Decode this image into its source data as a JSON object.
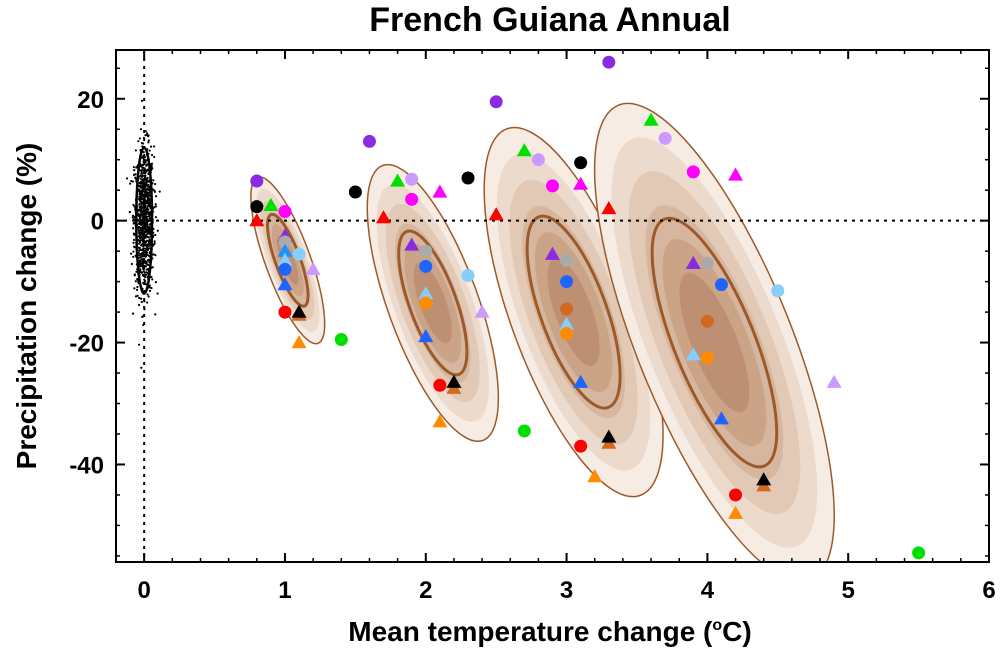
{
  "chart_data": {
    "type": "scatter",
    "title": "French Guiana Annual",
    "xlabel": {
      "prefix": "Mean temperature change (",
      "sup": "o",
      "suffix": "C)"
    },
    "ylabel": "Precipitation change (%)",
    "xlim": [
      -0.2,
      6.0
    ],
    "ylim": [
      -56,
      28
    ],
    "x_ticks": [
      0,
      1,
      2,
      3,
      4,
      5,
      6
    ],
    "y_ticks": [
      20,
      0,
      -20,
      -40
    ],
    "x_tick_labels": [
      "0",
      "1",
      "2",
      "3",
      "4",
      "5",
      "6"
    ],
    "y_tick_labels": [
      "20",
      "0",
      "-20",
      "-40"
    ],
    "zero_lines": {
      "x": 0,
      "y": 0
    },
    "colors": {
      "contour_fill_levels": [
        "#f6ece4",
        "#ecdacd",
        "#e2c9b6",
        "#d7b69f",
        "#cba387",
        "#be9073"
      ],
      "contour_line": "#9c5a2a",
      "scatter_cloud": "#000000"
    },
    "distributions": [
      {
        "center_x": 1.02,
        "center_y": -6.5,
        "major_semi": 14.5,
        "minor_semi": 0.16,
        "angle_deg": -20,
        "inner_scale": 0.55
      },
      {
        "center_x": 2.05,
        "center_y": -13.5,
        "major_semi": 24.0,
        "minor_semi": 0.32,
        "angle_deg": -20,
        "inner_scale": 0.52
      },
      {
        "center_x": 3.05,
        "center_y": -15.0,
        "major_semi": 32.0,
        "minor_semi": 0.45,
        "angle_deg": -20,
        "inner_scale": 0.52
      },
      {
        "center_x": 4.05,
        "center_y": -20.0,
        "major_semi": 42.0,
        "minor_semi": 0.55,
        "angle_deg": -22,
        "inner_scale": 0.52
      }
    ],
    "baseline_cloud": {
      "center_x": 0.0,
      "center_y": 0.0,
      "std_x": 0.035,
      "std_y": 6.0,
      "count": 900
    },
    "markers": [
      {
        "x": 0.8,
        "y": 6.5,
        "shape": "circle",
        "color": "#8a2be2"
      },
      {
        "x": 0.8,
        "y": 2.3,
        "shape": "circle",
        "color": "#000000"
      },
      {
        "x": 0.8,
        "y": 0.0,
        "shape": "triangle",
        "color": "#ff0000"
      },
      {
        "x": 0.9,
        "y": 2.5,
        "shape": "triangle",
        "color": "#00e000"
      },
      {
        "x": 1.0,
        "y": 1.5,
        "shape": "circle",
        "color": "#ff00ff"
      },
      {
        "x": 1.0,
        "y": -2.5,
        "shape": "triangle",
        "color": "#8a2be2"
      },
      {
        "x": 1.0,
        "y": -3.5,
        "shape": "circle",
        "color": "#aaaaaa"
      },
      {
        "x": 1.0,
        "y": -5.0,
        "shape": "triangle",
        "color": "#1e90ff"
      },
      {
        "x": 1.0,
        "y": -6.5,
        "shape": "triangle",
        "color": "#87cefa"
      },
      {
        "x": 1.0,
        "y": -8.0,
        "shape": "circle",
        "color": "#1e64ff"
      },
      {
        "x": 1.0,
        "y": -10.5,
        "shape": "triangle",
        "color": "#1e64ff"
      },
      {
        "x": 1.1,
        "y": -5.5,
        "shape": "circle",
        "color": "#87cefa"
      },
      {
        "x": 1.2,
        "y": -8.0,
        "shape": "triangle",
        "color": "#cc99ff"
      },
      {
        "x": 1.0,
        "y": -15.0,
        "shape": "circle",
        "color": "#ff0000"
      },
      {
        "x": 1.1,
        "y": -15.5,
        "shape": "triangle",
        "color": "#d2691e"
      },
      {
        "x": 1.1,
        "y": -15.0,
        "shape": "triangle",
        "color": "#000000"
      },
      {
        "x": 1.1,
        "y": -20.0,
        "shape": "triangle",
        "color": "#ff8c00"
      },
      {
        "x": 1.4,
        "y": -19.5,
        "shape": "circle",
        "color": "#00e000"
      },
      {
        "x": 1.5,
        "y": 4.7,
        "shape": "circle",
        "color": "#000000"
      },
      {
        "x": 1.6,
        "y": 13.0,
        "shape": "circle",
        "color": "#8a2be2"
      },
      {
        "x": 1.7,
        "y": 0.5,
        "shape": "triangle",
        "color": "#ff0000"
      },
      {
        "x": 1.8,
        "y": 6.5,
        "shape": "triangle",
        "color": "#00e000"
      },
      {
        "x": 1.9,
        "y": 6.8,
        "shape": "circle",
        "color": "#cc99ff"
      },
      {
        "x": 1.9,
        "y": 3.5,
        "shape": "circle",
        "color": "#ff00ff"
      },
      {
        "x": 2.1,
        "y": 4.7,
        "shape": "triangle",
        "color": "#ff00ff"
      },
      {
        "x": 2.3,
        "y": 7.0,
        "shape": "circle",
        "color": "#000000"
      },
      {
        "x": 1.9,
        "y": -4.0,
        "shape": "triangle",
        "color": "#8a2be2"
      },
      {
        "x": 2.0,
        "y": -5.0,
        "shape": "circle",
        "color": "#aaaaaa"
      },
      {
        "x": 2.0,
        "y": -7.5,
        "shape": "circle",
        "color": "#1e64ff"
      },
      {
        "x": 2.3,
        "y": -9.0,
        "shape": "circle",
        "color": "#87cefa"
      },
      {
        "x": 2.0,
        "y": -12.0,
        "shape": "triangle",
        "color": "#87cefa"
      },
      {
        "x": 2.0,
        "y": -13.5,
        "shape": "circle",
        "color": "#ff8c00"
      },
      {
        "x": 2.4,
        "y": -15.0,
        "shape": "triangle",
        "color": "#cc99ff"
      },
      {
        "x": 2.0,
        "y": -19.0,
        "shape": "triangle",
        "color": "#1e64ff"
      },
      {
        "x": 2.1,
        "y": -27.0,
        "shape": "circle",
        "color": "#ff0000"
      },
      {
        "x": 2.2,
        "y": -27.5,
        "shape": "triangle",
        "color": "#d2691e"
      },
      {
        "x": 2.2,
        "y": -26.5,
        "shape": "triangle",
        "color": "#000000"
      },
      {
        "x": 2.1,
        "y": -33.0,
        "shape": "triangle",
        "color": "#ff8c00"
      },
      {
        "x": 2.5,
        "y": 19.5,
        "shape": "circle",
        "color": "#8a2be2"
      },
      {
        "x": 2.5,
        "y": 1.0,
        "shape": "triangle",
        "color": "#ff0000"
      },
      {
        "x": 2.7,
        "y": 11.5,
        "shape": "triangle",
        "color": "#00e000"
      },
      {
        "x": 2.8,
        "y": 10.0,
        "shape": "circle",
        "color": "#cc99ff"
      },
      {
        "x": 2.9,
        "y": 5.7,
        "shape": "circle",
        "color": "#ff00ff"
      },
      {
        "x": 3.1,
        "y": 6.0,
        "shape": "triangle",
        "color": "#ff00ff"
      },
      {
        "x": 3.1,
        "y": 9.5,
        "shape": "circle",
        "color": "#000000"
      },
      {
        "x": 3.3,
        "y": 2.0,
        "shape": "triangle",
        "color": "#ff0000"
      },
      {
        "x": 2.9,
        "y": -5.5,
        "shape": "triangle",
        "color": "#8a2be2"
      },
      {
        "x": 3.0,
        "y": -6.5,
        "shape": "circle",
        "color": "#aaaaaa"
      },
      {
        "x": 3.0,
        "y": -10.0,
        "shape": "circle",
        "color": "#1e64ff"
      },
      {
        "x": 3.0,
        "y": -14.5,
        "shape": "circle",
        "color": "#d2691e"
      },
      {
        "x": 3.0,
        "y": -17.0,
        "shape": "triangle",
        "color": "#87cefa"
      },
      {
        "x": 3.0,
        "y": -18.5,
        "shape": "circle",
        "color": "#ff8c00"
      },
      {
        "x": 3.1,
        "y": -26.5,
        "shape": "triangle",
        "color": "#1e64ff"
      },
      {
        "x": 2.7,
        "y": -34.5,
        "shape": "circle",
        "color": "#00e000"
      },
      {
        "x": 3.1,
        "y": -37.0,
        "shape": "circle",
        "color": "#ff0000"
      },
      {
        "x": 3.3,
        "y": -36.5,
        "shape": "triangle",
        "color": "#d2691e"
      },
      {
        "x": 3.3,
        "y": -35.5,
        "shape": "triangle",
        "color": "#000000"
      },
      {
        "x": 3.2,
        "y": -42.0,
        "shape": "triangle",
        "color": "#ff8c00"
      },
      {
        "x": 3.3,
        "y": 26.0,
        "shape": "circle",
        "color": "#8a2be2"
      },
      {
        "x": 3.6,
        "y": 16.5,
        "shape": "triangle",
        "color": "#00e000"
      },
      {
        "x": 3.7,
        "y": 13.5,
        "shape": "circle",
        "color": "#cc99ff"
      },
      {
        "x": 3.9,
        "y": 8.0,
        "shape": "circle",
        "color": "#ff00ff"
      },
      {
        "x": 4.2,
        "y": 7.5,
        "shape": "triangle",
        "color": "#ff00ff"
      },
      {
        "x": 3.9,
        "y": -7.0,
        "shape": "triangle",
        "color": "#8a2be2"
      },
      {
        "x": 4.0,
        "y": -7.0,
        "shape": "circle",
        "color": "#aaaaaa"
      },
      {
        "x": 4.1,
        "y": -10.5,
        "shape": "circle",
        "color": "#1e64ff"
      },
      {
        "x": 4.5,
        "y": -11.5,
        "shape": "circle",
        "color": "#87cefa"
      },
      {
        "x": 4.0,
        "y": -16.5,
        "shape": "circle",
        "color": "#d2691e"
      },
      {
        "x": 3.9,
        "y": -22.0,
        "shape": "triangle",
        "color": "#87cefa"
      },
      {
        "x": 4.0,
        "y": -22.5,
        "shape": "circle",
        "color": "#ff8c00"
      },
      {
        "x": 4.9,
        "y": -26.5,
        "shape": "triangle",
        "color": "#cc99ff"
      },
      {
        "x": 4.1,
        "y": -32.5,
        "shape": "triangle",
        "color": "#1e64ff"
      },
      {
        "x": 4.4,
        "y": -43.5,
        "shape": "triangle",
        "color": "#d2691e"
      },
      {
        "x": 4.4,
        "y": -42.5,
        "shape": "triangle",
        "color": "#000000"
      },
      {
        "x": 4.2,
        "y": -45.0,
        "shape": "circle",
        "color": "#ff0000"
      },
      {
        "x": 4.2,
        "y": -48.0,
        "shape": "triangle",
        "color": "#ff8c00"
      },
      {
        "x": 5.5,
        "y": -54.5,
        "shape": "circle",
        "color": "#00e000"
      }
    ]
  }
}
